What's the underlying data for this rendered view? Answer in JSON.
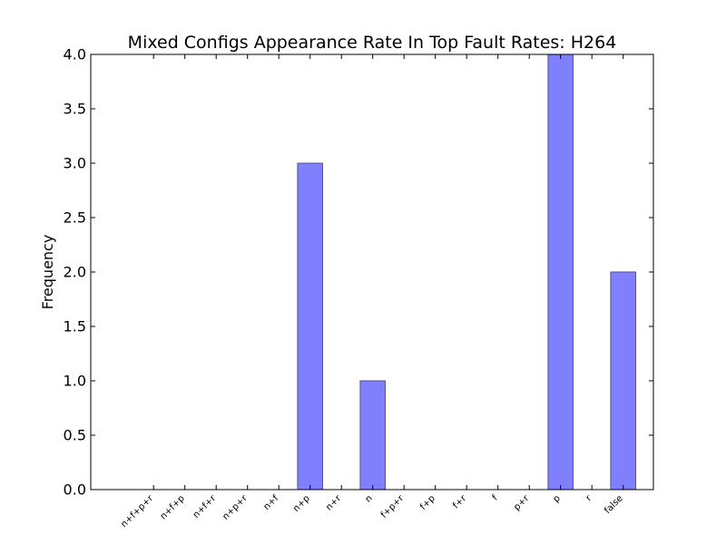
{
  "chart_data": {
    "type": "bar",
    "title": "Mixed Configs Appearance Rate In Top Fault Rates: H264",
    "xlabel": "",
    "ylabel": "Frequency",
    "categories": [
      "n+f+p+r",
      "n+f+p",
      "n+f+r",
      "n+p+r",
      "n+f",
      "n+p",
      "n+r",
      "n",
      "f+p+r",
      "f+p",
      "f+r",
      "f",
      "p+r",
      "p",
      "r",
      "false"
    ],
    "values": [
      0,
      0,
      0,
      0,
      0,
      3,
      0,
      1,
      0,
      0,
      0,
      0,
      0,
      4,
      0,
      2
    ],
    "ylim": [
      0,
      4.0
    ],
    "yticks": [
      "0.0",
      "0.5",
      "1.0",
      "1.5",
      "2.0",
      "2.5",
      "3.0",
      "3.5",
      "4.0"
    ],
    "grid": false,
    "bar_color": "#8080ff",
    "bar_edge_color": "#55558a"
  }
}
